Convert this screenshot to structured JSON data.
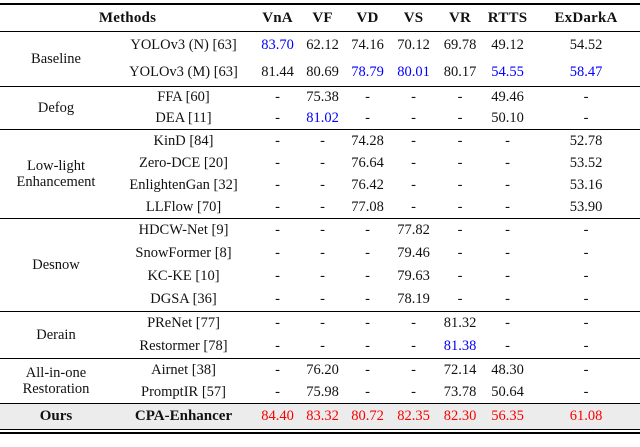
{
  "colors": {
    "second_best_blue": "#0000ff",
    "best_red": "#fa0000",
    "highlight_row_bg": "#ececec",
    "rule_color": "#000000"
  },
  "header": {
    "methods_label": "Methods",
    "metric_labels": [
      "VnA",
      "VF",
      "VD",
      "VS",
      "VR",
      "RTTS",
      "ExDarkA"
    ]
  },
  "sections": [
    {
      "group": "Baseline",
      "css": "h-baseline",
      "highlight": false,
      "rows": [
        {
          "method": "YOLOv3 (N) [63]",
          "values": [
            "83.70",
            "62.12",
            "74.16",
            "70.12",
            "69.78",
            "49.12",
            "54.52"
          ],
          "colors": [
            "blue",
            "",
            "",
            "",
            "",
            "",
            ""
          ]
        },
        {
          "method": "YOLOv3 (M) [63]",
          "values": [
            "81.44",
            "80.69",
            "78.79",
            "80.01",
            "80.17",
            "54.55",
            "58.47"
          ],
          "colors": [
            "",
            "",
            "blue",
            "blue",
            "",
            "blue",
            "blue"
          ]
        }
      ]
    },
    {
      "group": "Defog",
      "css": "h-defog",
      "highlight": false,
      "rows": [
        {
          "method": "FFA [60]",
          "values": [
            "-",
            "75.38",
            "-",
            "-",
            "-",
            "49.46",
            "-"
          ],
          "colors": [
            "",
            "",
            "",
            "",
            "",
            "",
            ""
          ]
        },
        {
          "method": "DEA [11]",
          "values": [
            "-",
            "81.02",
            "-",
            "-",
            "-",
            "50.10",
            "-"
          ],
          "colors": [
            "",
            "blue",
            "",
            "",
            "",
            "",
            ""
          ]
        }
      ]
    },
    {
      "group": "Low-light\nEnhancement",
      "css": "h-lowlight",
      "highlight": false,
      "rows": [
        {
          "method": "KinD [84]",
          "values": [
            "-",
            "-",
            "74.28",
            "-",
            "-",
            "-",
            "52.78"
          ],
          "colors": [
            "",
            "",
            "",
            "",
            "",
            "",
            ""
          ]
        },
        {
          "method": "Zero-DCE [20]",
          "values": [
            "-",
            "-",
            "76.64",
            "-",
            "-",
            "-",
            "53.52"
          ],
          "colors": [
            "",
            "",
            "",
            "",
            "",
            "",
            ""
          ]
        },
        {
          "method": "EnlightenGan [32]",
          "values": [
            "-",
            "-",
            "76.42",
            "-",
            "-",
            "-",
            "53.16"
          ],
          "colors": [
            "",
            "",
            "",
            "",
            "",
            "",
            ""
          ]
        },
        {
          "method": "LLFlow [70]",
          "values": [
            "-",
            "-",
            "77.08",
            "-",
            "-",
            "-",
            "53.90"
          ],
          "colors": [
            "",
            "",
            "",
            "",
            "",
            "",
            ""
          ]
        }
      ]
    },
    {
      "group": "Desnow",
      "css": "h-desnow",
      "highlight": false,
      "rows": [
        {
          "method": "HDCW-Net [9]",
          "values": [
            "-",
            "-",
            "-",
            "77.82",
            "-",
            "-",
            "-"
          ],
          "colors": [
            "",
            "",
            "",
            "",
            "",
            "",
            ""
          ]
        },
        {
          "method": "SnowFormer [8]",
          "values": [
            "-",
            "-",
            "-",
            "79.46",
            "-",
            "-",
            "-"
          ],
          "colors": [
            "",
            "",
            "",
            "",
            "",
            "",
            ""
          ]
        },
        {
          "method": "KC-KE [10]",
          "values": [
            "-",
            "-",
            "-",
            "79.63",
            "-",
            "-",
            "-"
          ],
          "colors": [
            "",
            "",
            "",
            "",
            "",
            "",
            ""
          ]
        },
        {
          "method": "DGSA [36]",
          "values": [
            "-",
            "-",
            "-",
            "78.19",
            "-",
            "-",
            "-"
          ],
          "colors": [
            "",
            "",
            "",
            "",
            "",
            "",
            ""
          ]
        }
      ]
    },
    {
      "group": "Derain",
      "css": "h-derain",
      "highlight": false,
      "rows": [
        {
          "method": "PReNet [77]",
          "values": [
            "-",
            "-",
            "-",
            "-",
            "81.32",
            "-",
            "-"
          ],
          "colors": [
            "",
            "",
            "",
            "",
            "",
            "",
            ""
          ]
        },
        {
          "method": "Restormer [78]",
          "values": [
            "-",
            "-",
            "-",
            "-",
            "81.38",
            "-",
            "-"
          ],
          "colors": [
            "",
            "",
            "",
            "",
            "blue",
            "",
            ""
          ]
        }
      ]
    },
    {
      "group": "All-in-one\nRestoration",
      "css": "h-aio",
      "highlight": false,
      "rows": [
        {
          "method": "Airnet [38]",
          "values": [
            "-",
            "76.20",
            "-",
            "-",
            "72.14",
            "48.30",
            "-"
          ],
          "colors": [
            "",
            "",
            "",
            "",
            "",
            "",
            ""
          ]
        },
        {
          "method": "PromptIR [57]",
          "values": [
            "-",
            "75.98",
            "-",
            "-",
            "73.78",
            "50.64",
            "-"
          ],
          "colors": [
            "",
            "",
            "",
            "",
            "",
            "",
            ""
          ]
        }
      ]
    },
    {
      "group": "Ours",
      "css": "h-ours",
      "highlight": true,
      "rows": [
        {
          "method": "CPA-Enhancer",
          "values": [
            "84.40",
            "83.32",
            "80.72",
            "82.35",
            "82.30",
            "56.35",
            "61.08"
          ],
          "colors": [
            "red",
            "red",
            "red",
            "red",
            "red",
            "red",
            "red"
          ]
        }
      ]
    }
  ]
}
